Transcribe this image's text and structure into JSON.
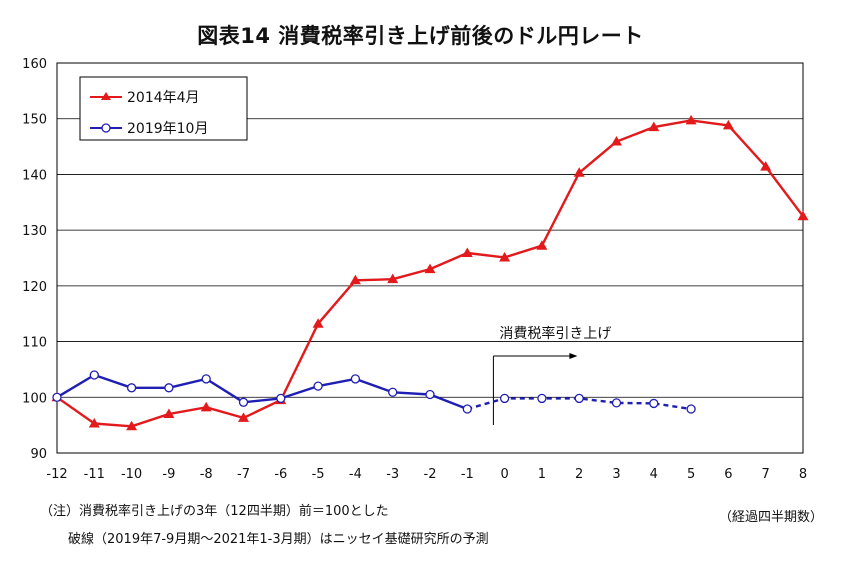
{
  "title": "図表14  消費税率引き上げ前後のドル円レート",
  "notes": [
    "（注）消費税率引き上げの3年（12四半期）前＝100とした",
    "破線（2019年7-9月期〜2021年1-3月期）はニッセイ基礎研究所の予測"
  ],
  "x_unit_label": "（経過四半期数）",
  "chart_data": {
    "type": "line",
    "title": "図表14  消費税率引き上げ前後のドル円レート",
    "xlabel": "（経過四半期数）",
    "ylabel": "",
    "xlim": [
      -12,
      8
    ],
    "ylim": [
      90,
      160
    ],
    "x_ticks": [
      -12,
      -11,
      -10,
      -9,
      -8,
      -7,
      -6,
      -5,
      -4,
      -3,
      -2,
      -1,
      0,
      1,
      2,
      3,
      4,
      5,
      6,
      7,
      8
    ],
    "y_ticks": [
      90,
      100,
      110,
      120,
      130,
      140,
      150,
      160
    ],
    "grid": "horizontal",
    "legend_position": "top-left",
    "annotation": {
      "text": "消費税率引き上げ",
      "x": -0.3
    },
    "series": [
      {
        "name": "2014年4月",
        "color": "#e31a1c",
        "marker": "triangle",
        "x": [
          -12,
          -11,
          -10,
          -9,
          -8,
          -7,
          -6,
          -5,
          -4,
          -3,
          -2,
          -1,
          0,
          1,
          2,
          3,
          4,
          5,
          6,
          7,
          8
        ],
        "values": [
          100,
          95.3,
          94.8,
          97.0,
          98.2,
          96.3,
          99.5,
          113.2,
          121.0,
          121.2,
          123.0,
          125.9,
          125.1,
          127.2,
          140.3,
          145.9,
          148.5,
          149.7,
          148.8,
          141.4,
          132.5
        ]
      },
      {
        "name": "2019年10月",
        "color": "#1f1fb4",
        "marker": "circle",
        "x": [
          -12,
          -11,
          -10,
          -9,
          -8,
          -7,
          -6,
          -5,
          -4,
          -3,
          -2,
          -1,
          0,
          1,
          2,
          3,
          4,
          5
        ],
        "values": [
          100,
          104.0,
          101.7,
          101.7,
          103.3,
          99.1,
          99.8,
          102.0,
          103.3,
          100.9,
          100.5,
          97.9,
          99.8,
          99.8,
          99.8,
          99.0,
          98.9,
          97.9
        ],
        "dashed_from_x": -1
      }
    ]
  }
}
